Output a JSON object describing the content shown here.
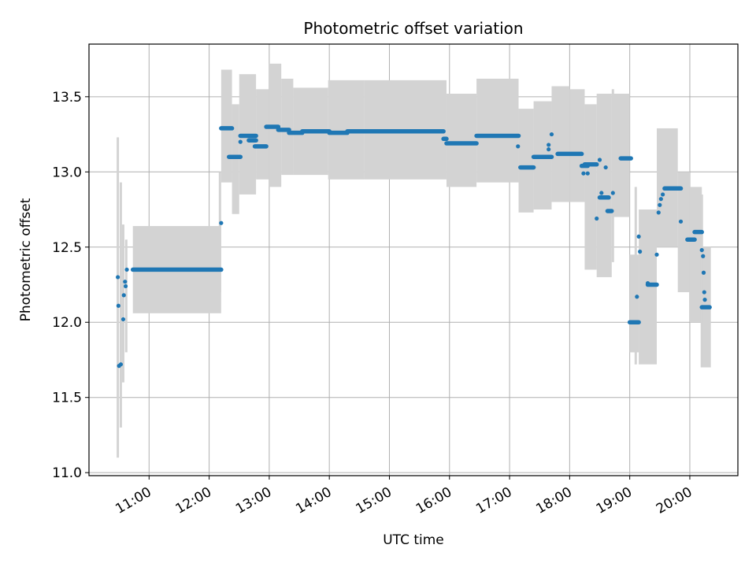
{
  "chart_data": {
    "type": "scatter",
    "title": "Photometric offset variation",
    "xlabel": "UTC time",
    "ylabel": "Photometric offset",
    "x_unit": "hours UTC",
    "xlim": [
      10.0,
      20.8
    ],
    "ylim": [
      10.98,
      13.85
    ],
    "grid": true,
    "legend": "none",
    "x_ticks": [
      {
        "value": 11,
        "label": "11:00"
      },
      {
        "value": 12,
        "label": "12:00"
      },
      {
        "value": 13,
        "label": "13:00"
      },
      {
        "value": 14,
        "label": "14:00"
      },
      {
        "value": 15,
        "label": "15:00"
      },
      {
        "value": 16,
        "label": "16:00"
      },
      {
        "value": 17,
        "label": "17:00"
      },
      {
        "value": 18,
        "label": "18:00"
      },
      {
        "value": 19,
        "label": "19:00"
      },
      {
        "value": 20,
        "label": "20:00"
      }
    ],
    "y_ticks": [
      {
        "value": 11.0,
        "label": "11.0"
      },
      {
        "value": 11.5,
        "label": "11.5"
      },
      {
        "value": 12.0,
        "label": "12.0"
      },
      {
        "value": 12.5,
        "label": "12.5"
      },
      {
        "value": 13.0,
        "label": "13.0"
      },
      {
        "value": 13.5,
        "label": "13.5"
      }
    ],
    "colors": {
      "points": "#1f77b4",
      "error_bars": "#d3d3d3",
      "grid": "#b0b0b0"
    },
    "error_bands": [
      {
        "x": [
          10.73,
          12.2
        ],
        "y": [
          12.06,
          12.64
        ]
      },
      {
        "x": [
          12.2,
          12.38
        ],
        "y": [
          12.93,
          13.68
        ]
      },
      {
        "x": [
          12.38,
          12.5
        ],
        "y": [
          12.72,
          13.45
        ]
      },
      {
        "x": [
          12.5,
          12.78
        ],
        "y": [
          12.85,
          13.65
        ]
      },
      {
        "x": [
          12.78,
          13.0
        ],
        "y": [
          12.95,
          13.55
        ]
      },
      {
        "x": [
          13.0,
          13.2
        ],
        "y": [
          12.9,
          13.72
        ]
      },
      {
        "x": [
          13.2,
          13.4
        ],
        "y": [
          12.98,
          13.62
        ]
      },
      {
        "x": [
          13.4,
          13.98
        ],
        "y": [
          12.98,
          13.56
        ]
      },
      {
        "x": [
          13.98,
          14.58
        ],
        "y": [
          12.95,
          13.61
        ]
      },
      {
        "x": [
          14.58,
          15.95
        ],
        "y": [
          12.95,
          13.61
        ]
      },
      {
        "x": [
          15.95,
          16.45
        ],
        "y": [
          12.9,
          13.52
        ]
      },
      {
        "x": [
          16.45,
          17.15
        ],
        "y": [
          12.93,
          13.62
        ]
      },
      {
        "x": [
          17.15,
          17.4
        ],
        "y": [
          12.73,
          13.42
        ]
      },
      {
        "x": [
          17.4,
          17.7
        ],
        "y": [
          12.75,
          13.47
        ]
      },
      {
        "x": [
          17.7,
          18.0
        ],
        "y": [
          12.8,
          13.57
        ]
      },
      {
        "x": [
          18.0,
          18.25
        ],
        "y": [
          12.8,
          13.55
        ]
      },
      {
        "x": [
          18.25,
          18.45
        ],
        "y": [
          12.35,
          13.45
        ]
      },
      {
        "x": [
          18.45,
          18.7
        ],
        "y": [
          12.3,
          13.52
        ]
      },
      {
        "x": [
          18.7,
          19.0
        ],
        "y": [
          12.7,
          13.52
        ]
      },
      {
        "x": [
          19.0,
          19.15
        ],
        "y": [
          11.8,
          12.45
        ]
      },
      {
        "x": [
          19.15,
          19.45
        ],
        "y": [
          11.72,
          12.75
        ]
      },
      {
        "x": [
          19.45,
          19.8
        ],
        "y": [
          12.5,
          13.29
        ]
      },
      {
        "x": [
          19.8,
          20.0
        ],
        "y": [
          12.2,
          13.0
        ]
      },
      {
        "x": [
          20.0,
          20.2
        ],
        "y": [
          12.0,
          12.9
        ]
      },
      {
        "x": [
          20.2,
          20.35
        ],
        "y": [
          11.7,
          12.5
        ]
      }
    ],
    "spikes": [
      {
        "x": 10.48,
        "y": [
          11.1,
          13.23
        ]
      },
      {
        "x": 10.53,
        "y": [
          11.3,
          12.93
        ]
      },
      {
        "x": 10.57,
        "y": [
          11.6,
          12.65
        ]
      },
      {
        "x": 10.62,
        "y": [
          11.8,
          12.55
        ]
      },
      {
        "x": 12.18,
        "y": [
          12.2,
          13.0
        ]
      },
      {
        "x": 18.48,
        "y": [
          12.3,
          13.52
        ]
      },
      {
        "x": 18.72,
        "y": [
          12.4,
          13.55
        ]
      },
      {
        "x": 19.1,
        "y": [
          11.72,
          12.9
        ]
      },
      {
        "x": 20.2,
        "y": [
          11.7,
          12.85
        ]
      }
    ],
    "series": [
      {
        "segments": [
          {
            "x": [
              10.73,
              12.2
            ],
            "y": 12.35
          },
          {
            "x": 12.2,
            "y": 12.66
          },
          {
            "x": [
              12.2,
              12.38
            ],
            "y": 13.29
          },
          {
            "x": [
              12.33,
              12.52
            ],
            "y": 13.1
          },
          {
            "x": [
              12.52,
              12.78
            ],
            "y": 13.24
          },
          {
            "x": [
              12.66,
              12.78
            ],
            "y": 13.21
          },
          {
            "x": [
              12.76,
              12.95
            ],
            "y": 13.17
          },
          {
            "x": [
              12.95,
              13.15
            ],
            "y": 13.3
          },
          {
            "x": [
              13.15,
              13.33
            ],
            "y": 13.28
          },
          {
            "x": [
              13.33,
              13.55
            ],
            "y": 13.26
          },
          {
            "x": [
              13.55,
              14.0
            ],
            "y": 13.27
          },
          {
            "x": [
              14.0,
              14.3
            ],
            "y": 13.26
          },
          {
            "x": [
              14.3,
              15.9
            ],
            "y": 13.27
          },
          {
            "x": [
              15.9,
              15.95
            ],
            "y": 13.22
          },
          {
            "x": [
              15.95,
              16.45
            ],
            "y": 13.19
          },
          {
            "x": [
              16.45,
              17.15
            ],
            "y": 13.24
          },
          {
            "x": [
              17.18,
              17.4
            ],
            "y": 13.03
          },
          {
            "x": [
              17.4,
              17.7
            ],
            "y": 13.1
          },
          {
            "x": [
              17.8,
              18.2
            ],
            "y": 13.12
          },
          {
            "x": [
              18.2,
              18.3
            ],
            "y": 13.04
          },
          {
            "x": [
              18.25,
              18.45
            ],
            "y": 13.05
          },
          {
            "x": [
              18.5,
              18.65
            ],
            "y": 12.83
          },
          {
            "x": [
              18.63,
              18.7
            ],
            "y": 12.74
          },
          {
            "x": [
              18.85,
              19.02
            ],
            "y": 13.09
          },
          {
            "x": [
              19.0,
              19.15
            ],
            "y": 12.0
          },
          {
            "x": [
              19.3,
              19.45
            ],
            "y": 12.25
          },
          {
            "x": [
              19.58,
              19.85
            ],
            "y": 12.89
          },
          {
            "x": [
              19.96,
              20.08
            ],
            "y": 12.55
          },
          {
            "x": [
              20.08,
              20.2
            ],
            "y": 12.6
          },
          {
            "x": [
              20.2,
              20.33
            ],
            "y": 12.1
          }
        ],
        "points": [
          {
            "x": 10.48,
            "y": 12.3
          },
          {
            "x": 10.49,
            "y": 12.11
          },
          {
            "x": 10.5,
            "y": 11.71
          },
          {
            "x": 10.53,
            "y": 11.72
          },
          {
            "x": 10.57,
            "y": 12.02
          },
          {
            "x": 10.58,
            "y": 12.18
          },
          {
            "x": 10.6,
            "y": 12.27
          },
          {
            "x": 10.61,
            "y": 12.24
          },
          {
            "x": 10.63,
            "y": 12.35
          },
          {
            "x": 12.52,
            "y": 13.2
          },
          {
            "x": 17.14,
            "y": 13.17
          },
          {
            "x": 17.65,
            "y": 13.15
          },
          {
            "x": 17.65,
            "y": 13.18
          },
          {
            "x": 17.7,
            "y": 13.25
          },
          {
            "x": 18.23,
            "y": 12.99
          },
          {
            "x": 18.3,
            "y": 12.99
          },
          {
            "x": 18.45,
            "y": 12.69
          },
          {
            "x": 18.5,
            "y": 13.08
          },
          {
            "x": 18.53,
            "y": 12.86
          },
          {
            "x": 18.6,
            "y": 13.03
          },
          {
            "x": 18.72,
            "y": 12.86
          },
          {
            "x": 19.12,
            "y": 12.17
          },
          {
            "x": 19.15,
            "y": 12.57
          },
          {
            "x": 19.17,
            "y": 12.47
          },
          {
            "x": 19.3,
            "y": 12.26
          },
          {
            "x": 19.45,
            "y": 12.45
          },
          {
            "x": 19.48,
            "y": 12.73
          },
          {
            "x": 19.5,
            "y": 12.78
          },
          {
            "x": 19.52,
            "y": 12.82
          },
          {
            "x": 19.55,
            "y": 12.85
          },
          {
            "x": 19.85,
            "y": 12.67
          },
          {
            "x": 20.2,
            "y": 12.48
          },
          {
            "x": 20.22,
            "y": 12.44
          },
          {
            "x": 20.23,
            "y": 12.33
          },
          {
            "x": 20.24,
            "y": 12.2
          },
          {
            "x": 20.25,
            "y": 12.15
          }
        ]
      }
    ]
  }
}
